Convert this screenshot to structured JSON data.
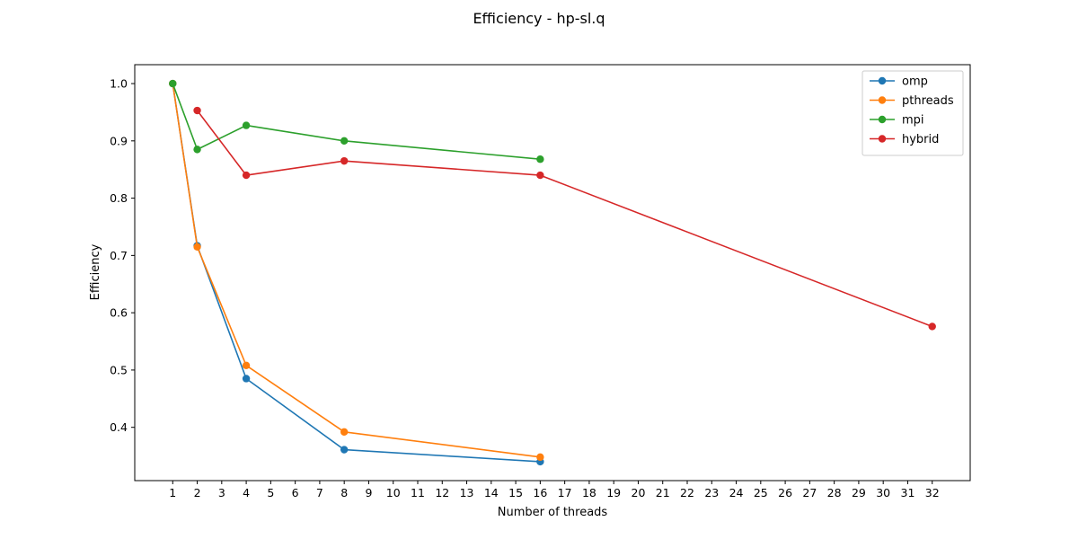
{
  "chart_data": {
    "type": "line",
    "title": "Efficiency - hp-sl.q",
    "xlabel": "Number of threads",
    "ylabel": "Efficiency",
    "x_ticks": [
      1,
      2,
      3,
      4,
      5,
      6,
      7,
      8,
      9,
      10,
      11,
      12,
      13,
      14,
      15,
      16,
      17,
      18,
      19,
      20,
      21,
      22,
      23,
      24,
      25,
      26,
      27,
      28,
      29,
      30,
      31,
      32
    ],
    "y_ticks": [
      0.4,
      0.5,
      0.6,
      0.7,
      0.8,
      0.9,
      1.0
    ],
    "y_tick_labels": [
      "0.4",
      "0.5",
      "0.6",
      "0.7",
      "0.8",
      "0.9",
      "1.0"
    ],
    "xlim": [
      -0.55,
      33.55
    ],
    "ylim": [
      0.307,
      1.033
    ],
    "grid": false,
    "legend_position": "top-right",
    "series": [
      {
        "name": "omp",
        "color": "#1f77b4",
        "x": [
          1,
          2,
          4,
          8,
          16
        ],
        "y": [
          1.0,
          0.717,
          0.485,
          0.361,
          0.34
        ]
      },
      {
        "name": "pthreads",
        "color": "#ff7f0e",
        "x": [
          1,
          2,
          4,
          8,
          16
        ],
        "y": [
          1.0,
          0.715,
          0.508,
          0.392,
          0.348
        ]
      },
      {
        "name": "mpi",
        "color": "#2ca02c",
        "x": [
          1,
          2,
          4,
          8,
          16
        ],
        "y": [
          1.0,
          0.885,
          0.927,
          0.9,
          0.868
        ]
      },
      {
        "name": "hybrid",
        "color": "#d62728",
        "x": [
          2,
          4,
          8,
          16,
          32
        ],
        "y": [
          0.953,
          0.84,
          0.865,
          0.84,
          0.576
        ]
      }
    ]
  }
}
